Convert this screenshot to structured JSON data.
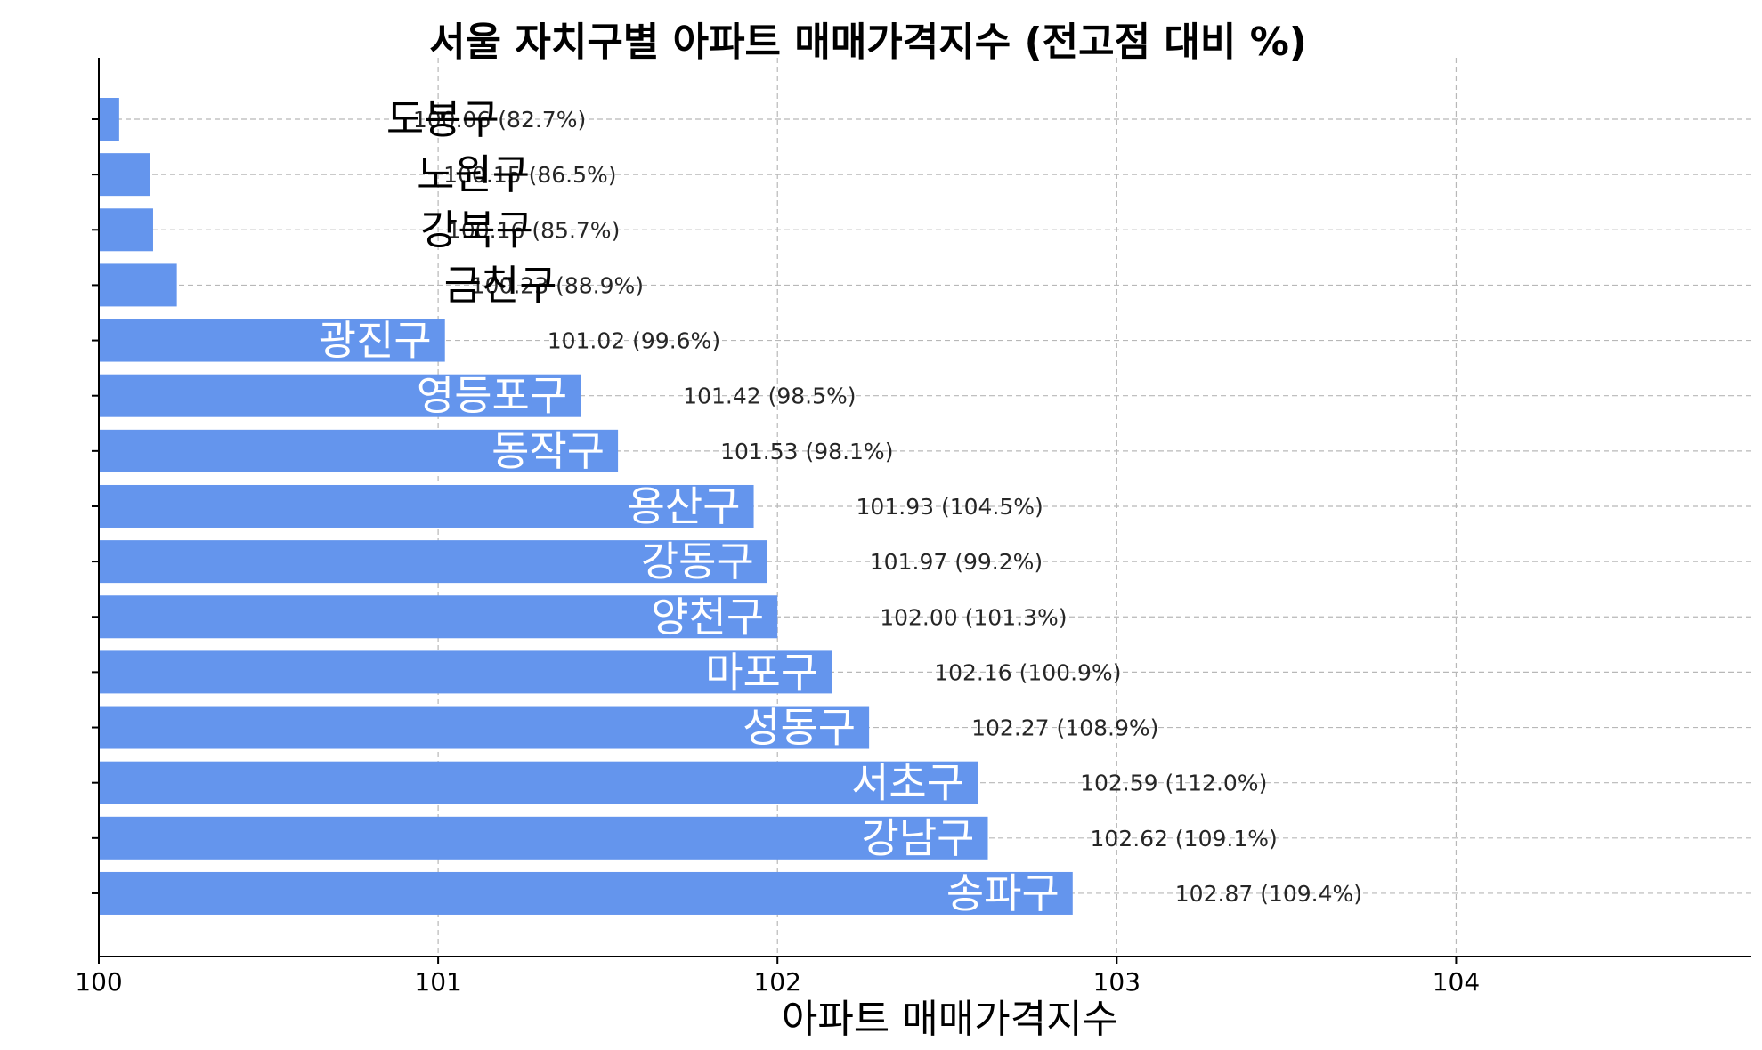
{
  "chart_data": {
    "type": "bar",
    "orientation": "horizontal",
    "title": "서울 자치구별 아파트 매매가격지수 (전고점 대비 %)",
    "xlabel": "아파트 매매가격지수",
    "ylabel": "",
    "xlim": [
      100,
      104.87
    ],
    "xticks": [
      "100",
      "101",
      "102",
      "103",
      "104"
    ],
    "grid": true,
    "bar_color": "#6495ED",
    "categories": [
      "도봉구",
      "노원구",
      "강북구",
      "금천구",
      "광진구",
      "영등포구",
      "동작구",
      "용산구",
      "강동구",
      "양천구",
      "마포구",
      "성동구",
      "서초구",
      "강남구",
      "송파구"
    ],
    "values": [
      100.06,
      100.15,
      100.16,
      100.23,
      101.02,
      101.42,
      101.53,
      101.93,
      101.97,
      102.0,
      102.16,
      102.27,
      102.59,
      102.62,
      102.87
    ],
    "value_labels": [
      "100.06 (82.7%)",
      "100.15 (86.5%)",
      "100.16 (85.7%)",
      "100.23 (88.9%)",
      "101.02 (99.6%)",
      "101.42 (98.5%)",
      "101.53 (98.1%)",
      "101.93 (104.5%)",
      "101.97 (99.2%)",
      "102.00 (101.3%)",
      "102.16 (100.9%)",
      "102.27 (108.9%)",
      "102.59 (112.0%)",
      "102.62 (109.1%)",
      "102.87 (109.4%)"
    ]
  }
}
